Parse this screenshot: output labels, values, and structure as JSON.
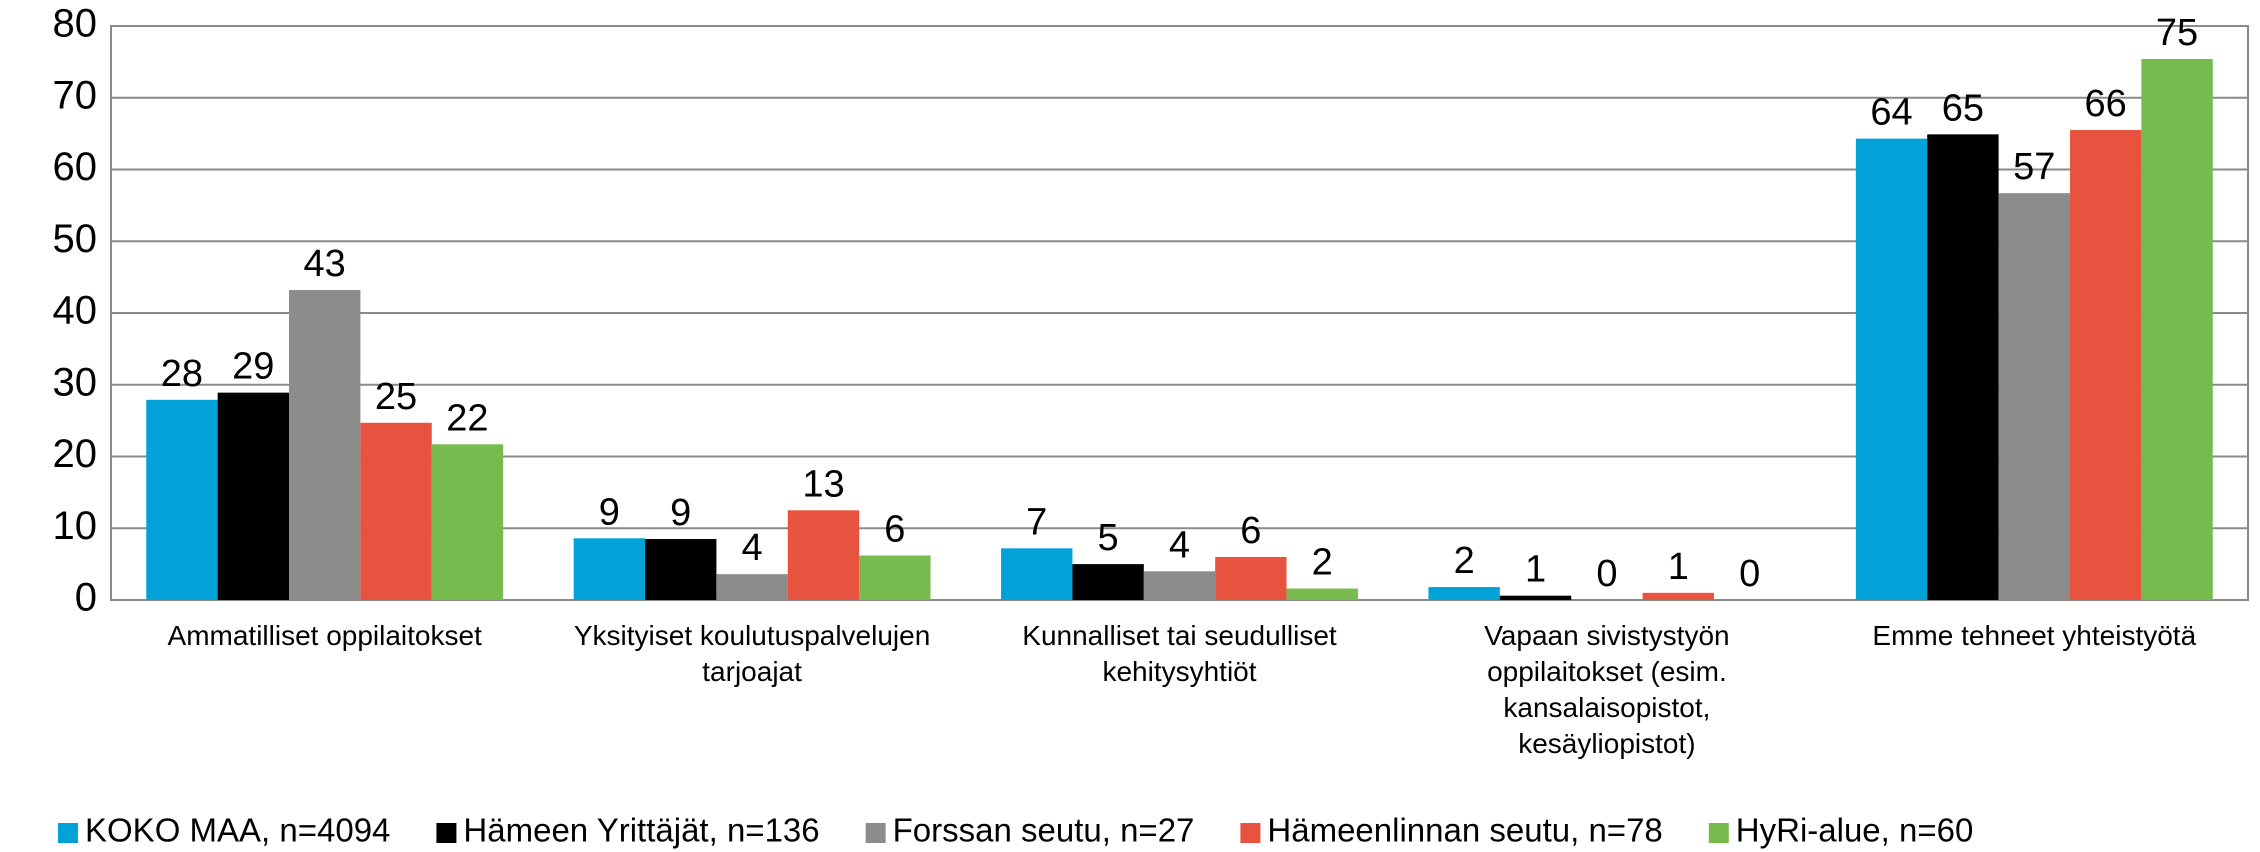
{
  "chart_data": {
    "type": "bar",
    "categories": [
      "Ammatilliset oppilaitokset",
      "Yksityiset koulutuspalvelujen tarjoajat",
      "Kunnalliset tai seudulliset kehitysyhtiöt",
      "Vapaan sivistystyön oppilaitokset (esim. kansalaisopistot, kesäyliopistot)",
      "Emme tehneet yhteistyötä"
    ],
    "series": [
      {
        "name": "KOKO MAA, n=4094",
        "color": "#00a2d8",
        "values": [
          27.9,
          8.6,
          7.2,
          1.8,
          64.3
        ],
        "value_labels": [
          "28",
          "9",
          "7",
          "2",
          "64"
        ]
      },
      {
        "name": "Hämeen Yrittäjät, n=136",
        "color": "#000000",
        "values": [
          28.9,
          8.5,
          5.0,
          0.6,
          64.9
        ],
        "value_labels": [
          "29",
          "9",
          "5",
          "1",
          "65"
        ]
      },
      {
        "name": "Forssan seutu, n=27",
        "color": "#8c8c8c",
        "values": [
          43.2,
          3.6,
          4.0,
          0,
          56.7
        ],
        "value_labels": [
          "43",
          "4",
          "4",
          "0",
          "57"
        ]
      },
      {
        "name": "Hämeenlinnan seutu, n=78",
        "color": "#e8533f",
        "values": [
          24.7,
          12.5,
          6.0,
          1.0,
          65.5
        ],
        "value_labels": [
          "25",
          "13",
          "6",
          "1",
          "66"
        ]
      },
      {
        "name": "HyRi-alue, n=60",
        "color": "#77bb4f",
        "values": [
          21.7,
          6.2,
          1.6,
          0,
          75.4
        ],
        "value_labels": [
          "22",
          "6",
          "2",
          "0",
          "75"
        ]
      }
    ],
    "ylim": [
      0,
      80
    ],
    "yticks": [
      0,
      10,
      20,
      30,
      40,
      50,
      60,
      70,
      80
    ],
    "grid": true,
    "legend": "bottom"
  }
}
